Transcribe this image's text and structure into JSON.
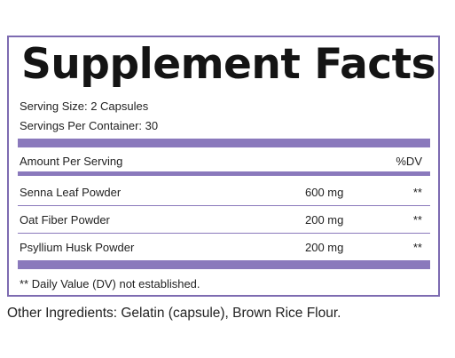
{
  "label": {
    "title": "Supplement Facts",
    "serving_size": "Serving Size: 2 Capsules",
    "servings_per_container": "Servings Per Container: 30",
    "header_left": "Amount Per Serving",
    "header_right": "%DV",
    "ingredients": [
      {
        "name": "Senna Leaf Powder",
        "amount": "600 mg",
        "dv": "**"
      },
      {
        "name": "Oat Fiber Powder",
        "amount": "200 mg",
        "dv": "**"
      },
      {
        "name": "Psyllium Husk Powder",
        "amount": "200 mg",
        "dv": "**"
      }
    ],
    "footnote": "** Daily Value (DV) not established.",
    "other_ingredients": "Other Ingredients: Gelatin (capsule), Brown Rice Flour."
  },
  "colors": {
    "border": "#7d6bb1",
    "bar": "#8a79bc",
    "text": "#222222"
  }
}
